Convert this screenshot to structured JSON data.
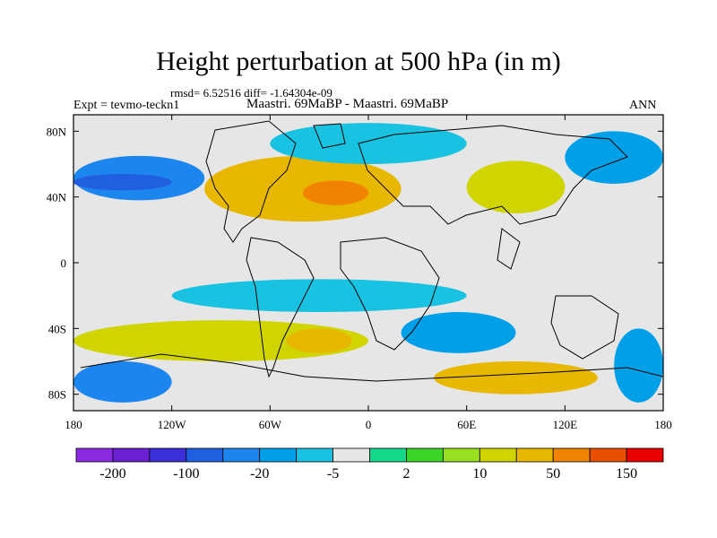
{
  "title": "Height perturbation at 500 hPa (in m)",
  "stats_line": "rmsd= 6.52516 diff= -1.64304e-09",
  "experiment_label": "Expt = tevmo-teckn1",
  "case_label": "Maastri.  69MaBP - Maastri.  69MaBP",
  "season_label": "ANN",
  "map": {
    "lon_range": [
      -180,
      180
    ],
    "lat_range": [
      -90,
      90
    ],
    "x_ticks": [
      {
        "value": -180,
        "label": "180"
      },
      {
        "value": -120,
        "label": "120W"
      },
      {
        "value": -60,
        "label": "60W"
      },
      {
        "value": 0,
        "label": "0"
      },
      {
        "value": 60,
        "label": "60E"
      },
      {
        "value": 120,
        "label": "120E"
      },
      {
        "value": 180,
        "label": "180"
      }
    ],
    "y_ticks": [
      {
        "value": 80,
        "label": "80N"
      },
      {
        "value": 40,
        "label": "40N"
      },
      {
        "value": 0,
        "label": "0"
      },
      {
        "value": -40,
        "label": "40S"
      },
      {
        "value": -80,
        "label": "80S"
      }
    ],
    "missing_color": "#e6e6e6",
    "anomaly_bands": [
      {
        "lon": [
          -180,
          -100
        ],
        "lat": [
          38,
          65
        ],
        "level": -40
      },
      {
        "lon": [
          -180,
          -120
        ],
        "lat": [
          44,
          54
        ],
        "level": -80
      },
      {
        "lon": [
          -100,
          20
        ],
        "lat": [
          25,
          65
        ],
        "level": 20
      },
      {
        "lon": [
          -40,
          0
        ],
        "lat": [
          35,
          50
        ],
        "level": 60
      },
      {
        "lon": [
          -60,
          60
        ],
        "lat": [
          60,
          85
        ],
        "level": -10
      },
      {
        "lon": [
          60,
          120
        ],
        "lat": [
          30,
          62
        ],
        "level": 15
      },
      {
        "lon": [
          120,
          180
        ],
        "lat": [
          48,
          80
        ],
        "level": -20
      },
      {
        "lon": [
          -120,
          60
        ],
        "lat": [
          -30,
          -10
        ],
        "level": -8
      },
      {
        "lon": [
          -180,
          0
        ],
        "lat": [
          -60,
          -35
        ],
        "level": 15
      },
      {
        "lon": [
          -50,
          -10
        ],
        "lat": [
          -55,
          -40
        ],
        "level": 30
      },
      {
        "lon": [
          20,
          90
        ],
        "lat": [
          -55,
          -30
        ],
        "level": -15
      },
      {
        "lon": [
          -180,
          -120
        ],
        "lat": [
          -85,
          -60
        ],
        "level": -30
      },
      {
        "lon": [
          40,
          140
        ],
        "lat": [
          -80,
          -60
        ],
        "level": 20
      },
      {
        "lon": [
          150,
          180
        ],
        "lat": [
          -85,
          -40
        ],
        "level": -20
      }
    ]
  },
  "colorbar": {
    "colors": [
      "#8a2be2",
      "#6a1fd1",
      "#3a2fd8",
      "#2060e0",
      "#1c86ee",
      "#00a0e8",
      "#18c2e0",
      "#e6e6e6",
      "#14d88a",
      "#3cd428",
      "#98e020",
      "#d0d400",
      "#e8b800",
      "#f08400",
      "#e85000",
      "#e80000"
    ],
    "tick_labels": [
      {
        "boundary": 1,
        "label": "-200"
      },
      {
        "boundary": 3,
        "label": "-100"
      },
      {
        "boundary": 5,
        "label": "-20"
      },
      {
        "boundary": 7,
        "label": "-5"
      },
      {
        "boundary": 9,
        "label": "2"
      },
      {
        "boundary": 11,
        "label": "10"
      },
      {
        "boundary": 13,
        "label": "50"
      },
      {
        "boundary": 15,
        "label": "150"
      }
    ],
    "levels": [
      -300,
      -200,
      -150,
      -100,
      -50,
      -20,
      -10,
      -5,
      -2,
      2,
      5,
      10,
      20,
      50,
      100,
      150,
      300
    ]
  }
}
